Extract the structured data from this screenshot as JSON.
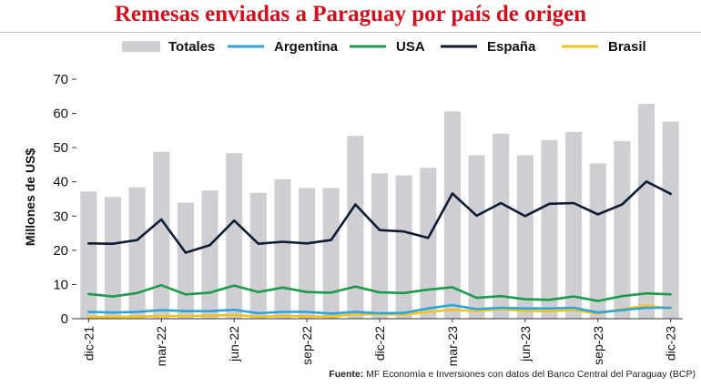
{
  "title": "Remesas enviadas a Paraguay por país de origen",
  "source_label": "Fuente:",
  "source_text": "MF Economía e Inversiones con datos del Banco Central del Paraguay (BCP)",
  "colors": {
    "Totales": "#cfcfd3",
    "Argentina": "#2aa3df",
    "USA": "#1b9a4a",
    "España": "#0d1c33",
    "Brasil": "#f2c21b",
    "title": "#d0101f"
  },
  "chart_data": {
    "type": "bar",
    "ylabel": "Millones de US$",
    "ylim": [
      0,
      70
    ],
    "yticks": [
      0,
      10,
      20,
      30,
      40,
      50,
      60,
      70
    ],
    "categories": [
      "dic-21",
      "ene-22",
      "feb-22",
      "mar-22",
      "abr-22",
      "may-22",
      "jun-22",
      "jul-22",
      "ago-22",
      "sep-22",
      "oct-22",
      "nov-22",
      "dic-22",
      "ene-23",
      "feb-23",
      "mar-23",
      "abr-23",
      "may-23",
      "jun-23",
      "jul-23",
      "ago-23",
      "sep-23",
      "oct-23",
      "nov-23",
      "dic-23"
    ],
    "tick_labels": [
      "dic-21",
      "mar-22",
      "jun-22",
      "sep-22",
      "dic-22",
      "mar-23",
      "jun-23",
      "sep-23",
      "dic-23"
    ],
    "legend": [
      "Totales",
      "Argentina",
      "USA",
      "España",
      "Brasil"
    ],
    "series": [
      {
        "name": "Totales",
        "kind": "bar",
        "values": [
          37.2,
          35.6,
          38.4,
          48.8,
          33.9,
          37.5,
          48.4,
          36.8,
          40.8,
          38.2,
          38.2,
          53.4,
          42.5,
          41.9,
          44.1,
          60.6,
          47.8,
          54.1,
          47.8,
          52.2,
          54.6,
          45.4,
          51.9,
          62.8,
          57.6
        ]
      },
      {
        "name": "Argentina",
        "kind": "line",
        "values": [
          2.0,
          1.8,
          2.0,
          2.5,
          2.2,
          2.2,
          2.6,
          1.6,
          2.0,
          2.0,
          1.5,
          2.0,
          1.6,
          1.7,
          3.0,
          4.0,
          2.8,
          3.2,
          3.0,
          3.0,
          3.2,
          1.8,
          2.5,
          3.2,
          3.2
        ]
      },
      {
        "name": "USA",
        "kind": "line",
        "values": [
          7.2,
          6.5,
          7.5,
          9.8,
          7.1,
          7.6,
          9.7,
          7.8,
          9.1,
          7.8,
          7.6,
          9.4,
          7.7,
          7.5,
          8.5,
          9.2,
          6.1,
          6.6,
          5.7,
          5.5,
          6.5,
          5.2,
          6.6,
          7.4,
          7.1
        ]
      },
      {
        "name": "España",
        "kind": "line",
        "values": [
          22.0,
          21.9,
          23.0,
          29.0,
          19.3,
          21.5,
          28.7,
          21.9,
          22.5,
          22.0,
          23.0,
          33.4,
          25.9,
          25.5,
          23.6,
          36.6,
          30.1,
          33.8,
          30.0,
          33.6,
          33.8,
          30.5,
          33.4,
          40.1,
          36.5
        ]
      },
      {
        "name": "Brasil",
        "kind": "line",
        "values": [
          0.5,
          0.5,
          0.6,
          0.8,
          0.8,
          0.9,
          1.1,
          0.6,
          0.8,
          0.7,
          0.6,
          1.3,
          1.3,
          1.2,
          2.0,
          2.6,
          2.2,
          2.8,
          2.3,
          2.2,
          2.5,
          1.5,
          2.8,
          3.8,
          3.0
        ]
      }
    ]
  }
}
